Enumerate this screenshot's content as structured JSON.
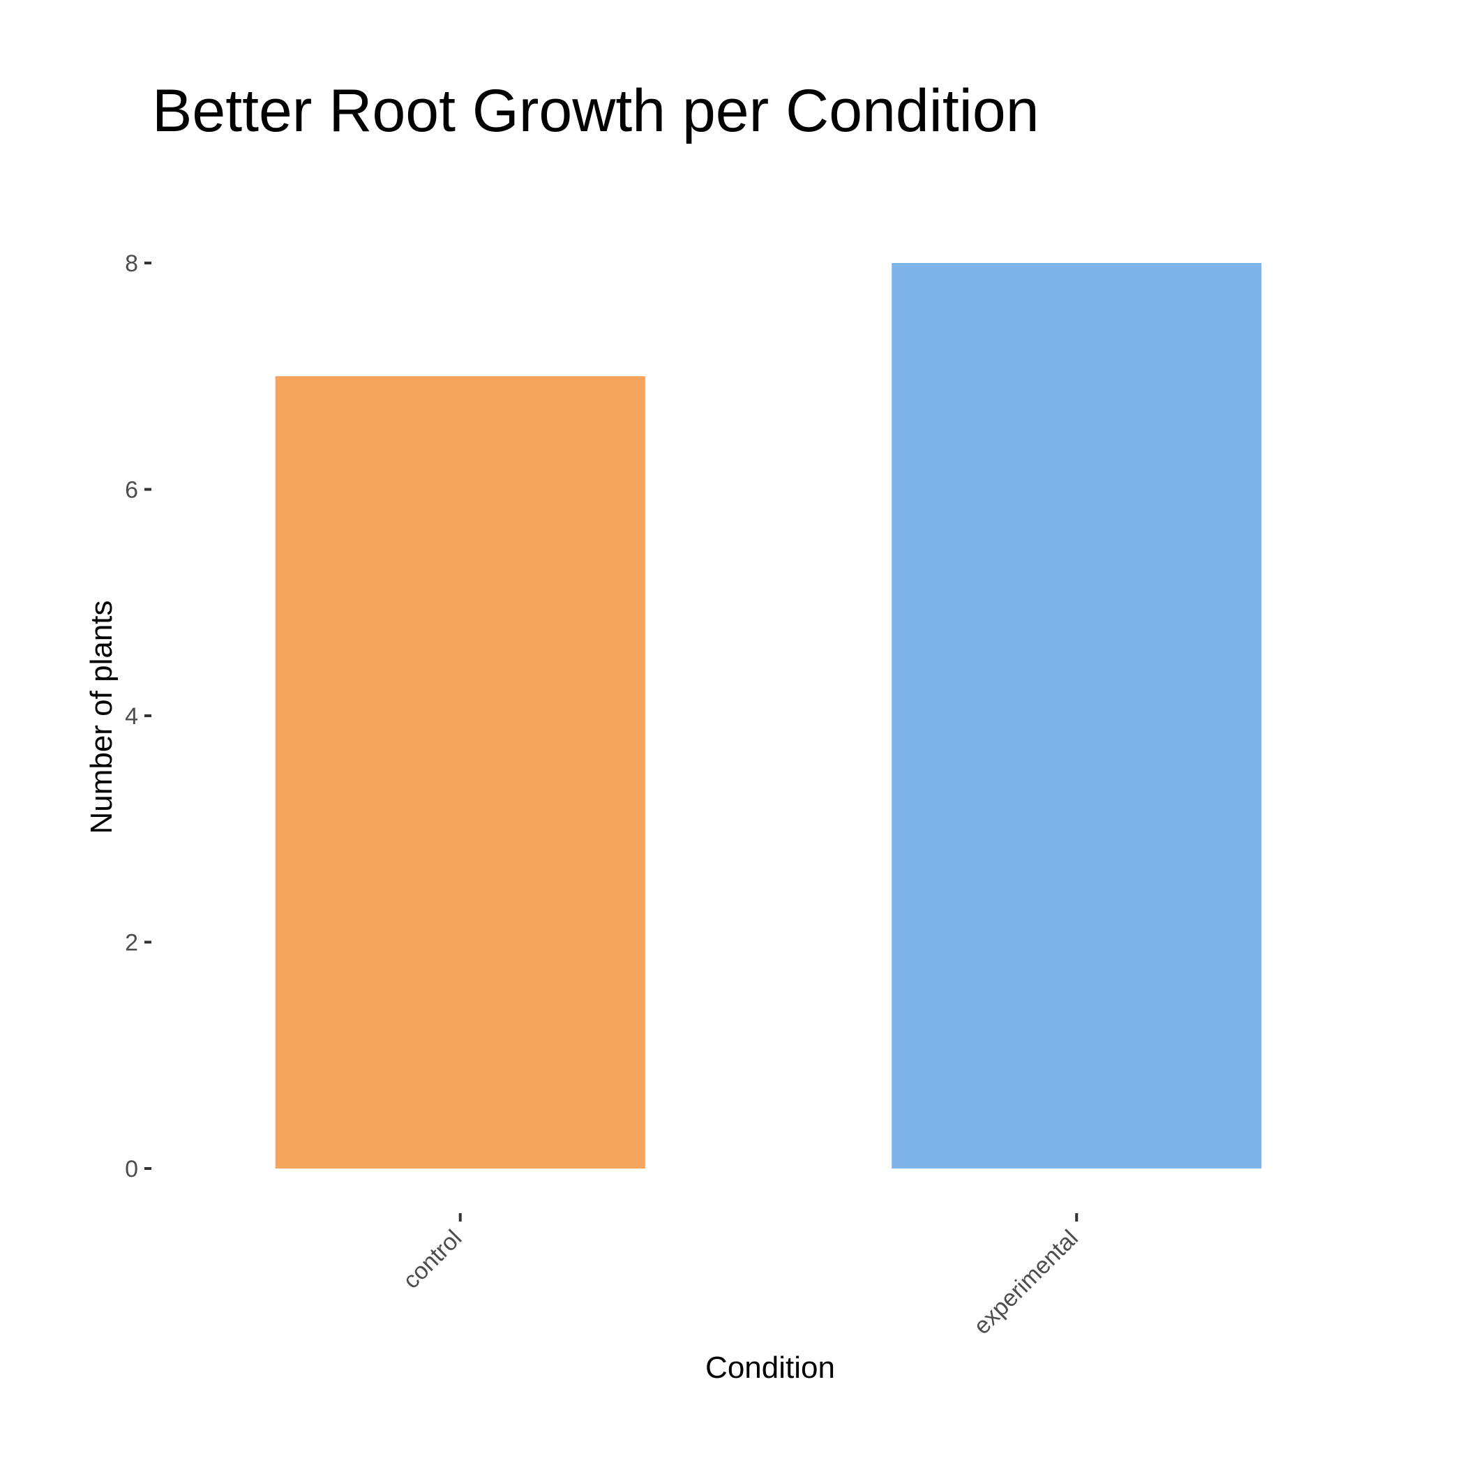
{
  "chart_data": {
    "type": "bar",
    "title": "Better Root Growth per Condition",
    "xlabel": "Condition",
    "ylabel": "Number of plants",
    "categories": [
      "control",
      "experimental"
    ],
    "values": [
      7,
      8
    ],
    "colors": [
      "#F5A45E",
      "#7EB4EA"
    ],
    "ylim": [
      0,
      8
    ],
    "yticks": [
      0,
      2,
      4,
      6,
      8
    ],
    "grid": false,
    "legend": "none"
  }
}
